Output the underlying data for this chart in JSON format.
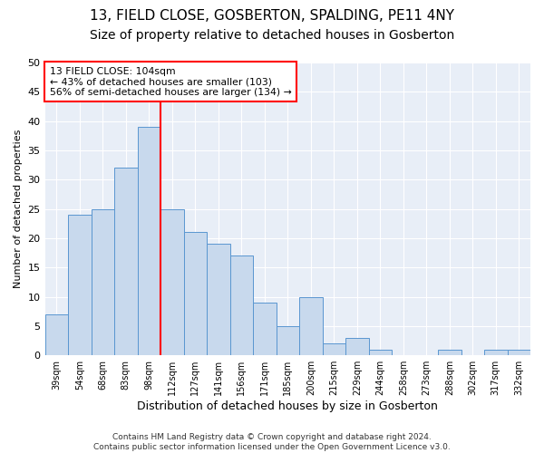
{
  "title": "13, FIELD CLOSE, GOSBERTON, SPALDING, PE11 4NY",
  "subtitle": "Size of property relative to detached houses in Gosberton",
  "xlabel": "Distribution of detached houses by size in Gosberton",
  "ylabel": "Number of detached properties",
  "categories": [
    "39sqm",
    "54sqm",
    "68sqm",
    "83sqm",
    "98sqm",
    "112sqm",
    "127sqm",
    "141sqm",
    "156sqm",
    "171sqm",
    "185sqm",
    "200sqm",
    "215sqm",
    "229sqm",
    "244sqm",
    "258sqm",
    "273sqm",
    "288sqm",
    "302sqm",
    "317sqm",
    "332sqm"
  ],
  "values": [
    7,
    24,
    25,
    32,
    39,
    25,
    21,
    19,
    17,
    9,
    5,
    10,
    2,
    3,
    1,
    0,
    0,
    1,
    0,
    1,
    1
  ],
  "bar_color": "#c8d9ed",
  "bar_edge_color": "#5a96d0",
  "red_line_x": 4.5,
  "annotation_lines": [
    "13 FIELD CLOSE: 104sqm",
    "← 43% of detached houses are smaller (103)",
    "56% of semi-detached houses are larger (134) →"
  ],
  "footer_line1": "Contains HM Land Registry data © Crown copyright and database right 2024.",
  "footer_line2": "Contains public sector information licensed under the Open Government Licence v3.0.",
  "ylim": [
    0,
    50
  ],
  "yticks": [
    0,
    5,
    10,
    15,
    20,
    25,
    30,
    35,
    40,
    45,
    50
  ],
  "fig_background": "#ffffff",
  "plot_background": "#e8eef7",
  "grid_color": "#ffffff",
  "title_fontsize": 11,
  "subtitle_fontsize": 10
}
